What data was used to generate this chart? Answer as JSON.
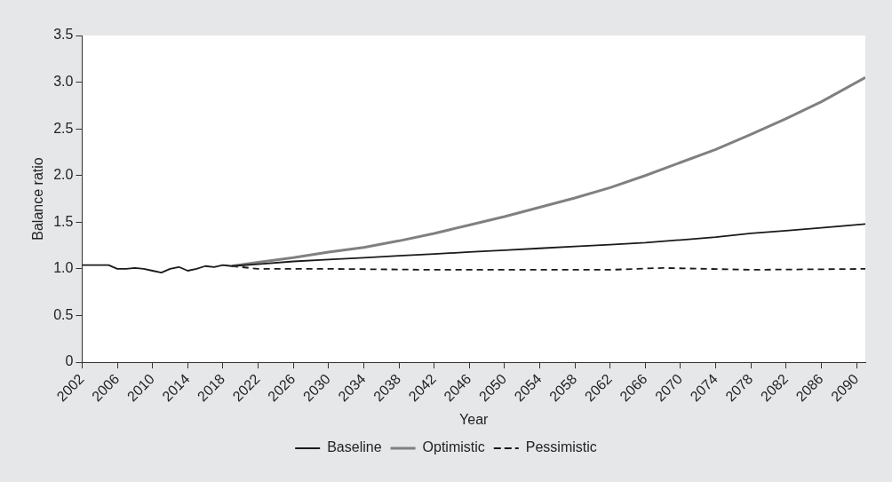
{
  "chart_data": {
    "type": "line",
    "xlabel": "Year",
    "ylabel": "Balance ratio",
    "xlim": [
      2002,
      2091
    ],
    "ylim": [
      0,
      3.5
    ],
    "xticks": [
      2002,
      2006,
      2010,
      2014,
      2018,
      2022,
      2026,
      2030,
      2034,
      2038,
      2042,
      2046,
      2050,
      2054,
      2058,
      2062,
      2066,
      2070,
      2074,
      2078,
      2082,
      2086,
      2090
    ],
    "yticks": [
      {
        "value": 0,
        "label": "0"
      },
      {
        "value": 0.5,
        "label": "0.5"
      },
      {
        "value": 1,
        "label": "1.0"
      },
      {
        "value": 1.5,
        "label": "1.5"
      },
      {
        "value": 2,
        "label": "2.0"
      },
      {
        "value": 2.5,
        "label": "2.5"
      },
      {
        "value": 3,
        "label": "3.0"
      },
      {
        "value": 3.5,
        "label": "3.5"
      }
    ],
    "grid": false,
    "legend": "bottom",
    "marker": "none",
    "series": [
      {
        "name": "Baseline",
        "color": "#1a1a1a",
        "line_style": "solid",
        "x": [
          2002,
          2004,
          2005,
          2006,
          2007,
          2008,
          2009,
          2010,
          2011,
          2012,
          2013,
          2014,
          2015,
          2016,
          2017,
          2018,
          2019,
          2022,
          2026,
          2030,
          2034,
          2038,
          2042,
          2046,
          2050,
          2054,
          2058,
          2062,
          2066,
          2070,
          2074,
          2078,
          2082,
          2086,
          2091
        ],
        "values": [
          1.04,
          1.04,
          1.04,
          1.0,
          1.0,
          1.01,
          1.0,
          0.98,
          0.96,
          1.0,
          1.02,
          0.98,
          1.0,
          1.03,
          1.02,
          1.04,
          1.03,
          1.05,
          1.08,
          1.1,
          1.12,
          1.14,
          1.16,
          1.18,
          1.2,
          1.22,
          1.24,
          1.26,
          1.28,
          1.31,
          1.34,
          1.38,
          1.41,
          1.44,
          1.48
        ]
      },
      {
        "name": "Optimistic",
        "color": "#808080",
        "line_style": "solid",
        "x": [
          2019,
          2022,
          2026,
          2030,
          2034,
          2038,
          2042,
          2046,
          2050,
          2054,
          2058,
          2062,
          2066,
          2070,
          2074,
          2078,
          2082,
          2086,
          2091
        ],
        "values": [
          1.03,
          1.07,
          1.12,
          1.18,
          1.23,
          1.3,
          1.38,
          1.47,
          1.56,
          1.66,
          1.76,
          1.87,
          2.0,
          2.14,
          2.28,
          2.44,
          2.61,
          2.79,
          3.05
        ]
      },
      {
        "name": "Pessimistic",
        "color": "#1a1a1a",
        "line_style": "dashed",
        "x": [
          2019,
          2022,
          2030,
          2042,
          2054,
          2062,
          2068,
          2078,
          2091
        ],
        "values": [
          1.03,
          1.0,
          1.0,
          0.99,
          0.99,
          0.99,
          1.01,
          0.99,
          1.0
        ]
      }
    ]
  }
}
